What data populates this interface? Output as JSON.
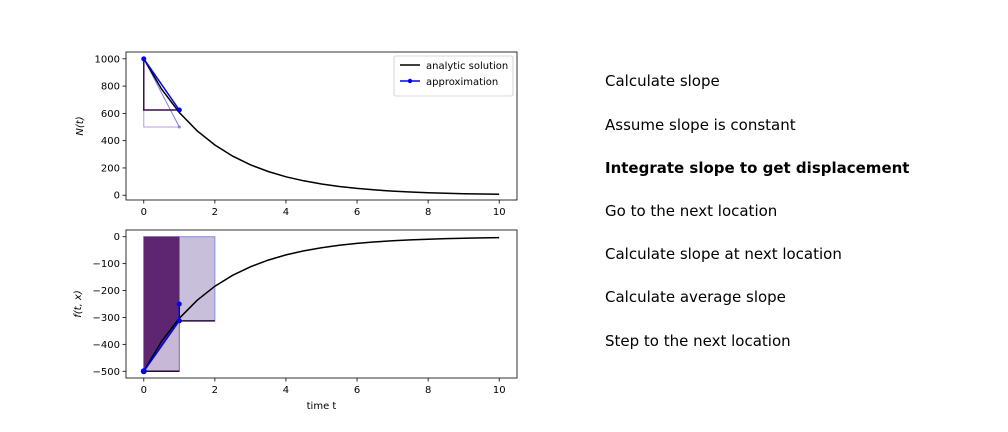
{
  "chart_data": [
    {
      "type": "line",
      "xlim": [
        -0.5,
        10.5
      ],
      "ylim": [
        -35,
        1050
      ],
      "xticks": [
        "0",
        "2",
        "4",
        "6",
        "8",
        "10"
      ],
      "yticks": [
        "0",
        "200",
        "400",
        "600",
        "800",
        "1000"
      ],
      "xtick_values": [
        0,
        2,
        4,
        6,
        8,
        10
      ],
      "ytick_values": [
        0,
        200,
        400,
        600,
        800,
        1000
      ],
      "xlabel": "",
      "ylabel": "N(t)",
      "grid": false,
      "legend": "top-right",
      "series": [
        {
          "name": "analytic solution",
          "color": "#000000",
          "function": "1000*exp(-0.5*t)",
          "x": [
            0,
            0.5,
            1,
            1.5,
            2,
            2.5,
            3,
            3.5,
            4,
            4.5,
            5,
            5.5,
            6,
            6.5,
            7,
            7.5,
            8,
            8.5,
            9,
            9.5,
            10
          ],
          "y": [
            1000,
            778.8,
            606.5,
            472.4,
            367.9,
            286.5,
            223.1,
            173.8,
            135.3,
            105.4,
            82.1,
            63.9,
            49.8,
            38.8,
            30.2,
            23.5,
            18.3,
            14.3,
            11.1,
            8.7,
            6.7
          ]
        },
        {
          "name": "approximation",
          "color": "#0000ff",
          "marker": "dot",
          "x": [
            0,
            1
          ],
          "y": [
            1000,
            625
          ]
        }
      ],
      "annotations": {
        "euler_step": {
          "x": [
            0,
            1
          ],
          "y": [
            1000,
            500
          ],
          "color": "#8080e0"
        },
        "euler_triangle": {
          "x": [
            0,
            0,
            1
          ],
          "y": [
            1000,
            500,
            500
          ],
          "color": "#b0a0d0"
        },
        "step_triangle": {
          "x": [
            0,
            0,
            1
          ],
          "y": [
            1000,
            625,
            625
          ],
          "color": "#3a0a50"
        }
      }
    },
    {
      "type": "line",
      "xlim": [
        -0.5,
        10.5
      ],
      "ylim": [
        -525,
        25
      ],
      "xticks": [
        "0",
        "2",
        "4",
        "6",
        "8",
        "10"
      ],
      "yticks": [
        "0",
        "−100",
        "−200",
        "−300",
        "−400",
        "−500"
      ],
      "xtick_values": [
        0,
        2,
        4,
        6,
        8,
        10
      ],
      "ytick_values": [
        0,
        -100,
        -200,
        -300,
        -400,
        -500
      ],
      "xlabel": "time t",
      "ylabel": "f(t, x)",
      "grid": false,
      "series": [
        {
          "name": "",
          "color": "#000000",
          "function": "-500*exp(-0.5*t)",
          "x": [
            0,
            0.5,
            1,
            1.5,
            2,
            2.5,
            3,
            3.5,
            4,
            4.5,
            5,
            5.5,
            6,
            6.5,
            7,
            7.5,
            8,
            8.5,
            9,
            9.5,
            10
          ],
          "y": [
            -500,
            -389.4,
            -303.3,
            -236.2,
            -183.9,
            -143.3,
            -111.6,
            -86.9,
            -67.7,
            -52.7,
            -41.0,
            -32.0,
            -24.9,
            -19.4,
            -15.1,
            -11.8,
            -9.2,
            -7.1,
            -5.6,
            -4.3,
            -3.4
          ]
        },
        {
          "name": "",
          "color": "#0000ff",
          "marker": "dot",
          "x": [
            0,
            1,
            1
          ],
          "y": [
            -500,
            -312.5,
            -250
          ]
        }
      ],
      "regions": [
        {
          "x0": 0,
          "x1": 1,
          "y0": -500,
          "y1": 0,
          "fill": "#c8b8d8",
          "stroke": "#7a6aa8"
        },
        {
          "x0": 1,
          "x1": 2,
          "y0": -312.5,
          "y1": 0,
          "fill": "#c8bfdb",
          "stroke": "#8888e0"
        },
        {
          "polygon_x": [
            0,
            0,
            1,
            1
          ],
          "polygon_y": [
            -500,
            0,
            0,
            -312.5
          ],
          "fill": "#5e2570"
        }
      ]
    }
  ],
  "steps": [
    {
      "label": "Calculate slope",
      "active": false
    },
    {
      "label": "Assume slope is constant",
      "active": false
    },
    {
      "label": "Integrate slope to get displacement",
      "active": true
    },
    {
      "label": "Go to the next location",
      "active": false
    },
    {
      "label": "Calculate slope at next location",
      "active": false
    },
    {
      "label": "Calculate average slope",
      "active": false
    },
    {
      "label": "Step to the next location",
      "active": false
    }
  ]
}
